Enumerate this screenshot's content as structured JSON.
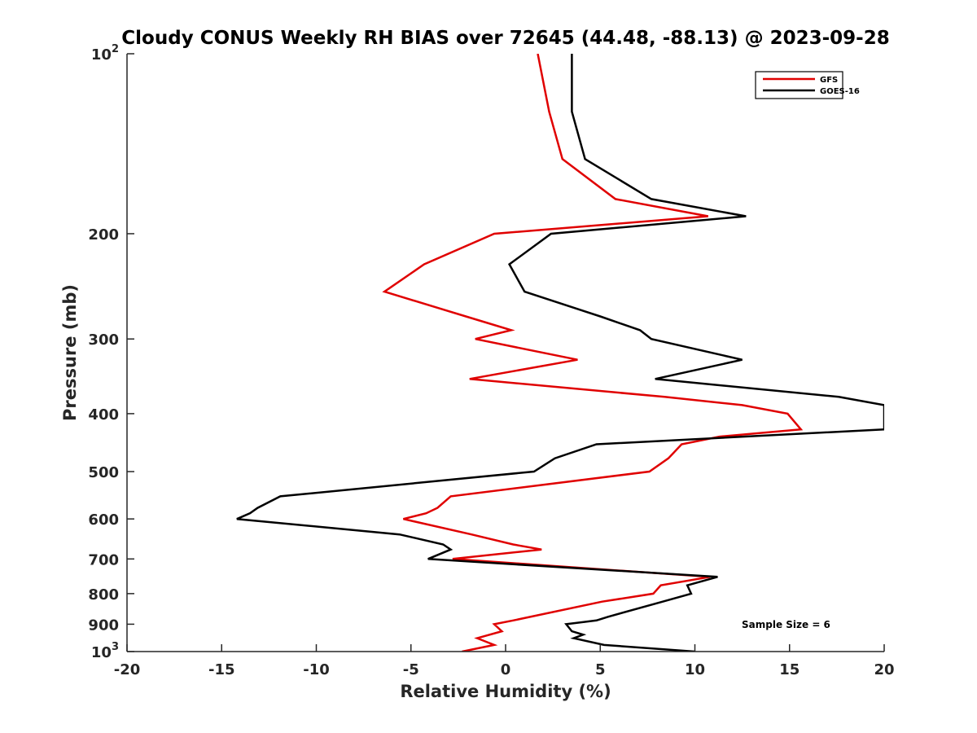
{
  "chart_data": {
    "type": "line",
    "title": "Cloudy CONUS Weekly RH BIAS over 72645 (44.48, -88.13) @ 2023-09-28",
    "xlabel": "Relative Humidity (%)",
    "ylabel": "Pressure (mb)",
    "xlim": [
      -20,
      20
    ],
    "ylim": [
      100,
      1000
    ],
    "y_scale": "log",
    "y_reversed": true,
    "grid": false,
    "legend_position": "top-right",
    "x_ticks": [
      "-20",
      "-15",
      "-10",
      "-5",
      "0",
      "5",
      "10",
      "15",
      "20"
    ],
    "y_ticks": [
      {
        "value": 100,
        "base": "10",
        "exp": "2"
      },
      {
        "value": 200,
        "label": "200"
      },
      {
        "value": 300,
        "label": "300"
      },
      {
        "value": 400,
        "label": "400"
      },
      {
        "value": 500,
        "label": "500"
      },
      {
        "value": 600,
        "label": "600"
      },
      {
        "value": 700,
        "label": "700"
      },
      {
        "value": 800,
        "label": "800"
      },
      {
        "value": 900,
        "label": "900"
      },
      {
        "value": 1000,
        "base": "10",
        "exp": "3"
      }
    ],
    "series": [
      {
        "name": "GFS",
        "color": "#e00000",
        "points": [
          [
            1.7,
            100
          ],
          [
            2.3,
            125
          ],
          [
            3.0,
            150
          ],
          [
            5.8,
            175
          ],
          [
            10.7,
            187
          ],
          [
            -0.6,
            200
          ],
          [
            -4.3,
            225
          ],
          [
            -6.4,
            250
          ],
          [
            -2.1,
            275
          ],
          [
            0.3,
            290
          ],
          [
            -1.6,
            300
          ],
          [
            3.8,
            325
          ],
          [
            -1.9,
            350
          ],
          [
            8.4,
            375
          ],
          [
            12.5,
            387
          ],
          [
            14.9,
            400
          ],
          [
            15.6,
            425
          ],
          [
            11.3,
            437
          ],
          [
            9.3,
            450
          ],
          [
            8.6,
            475
          ],
          [
            7.6,
            500
          ],
          [
            -2.9,
            550
          ],
          [
            -3.6,
            575
          ],
          [
            -4.2,
            587
          ],
          [
            -5.4,
            600
          ],
          [
            -1.8,
            637
          ],
          [
            0.4,
            662
          ],
          [
            1.9,
            675
          ],
          [
            -2.8,
            700
          ],
          [
            10.8,
            750
          ],
          [
            8.2,
            775
          ],
          [
            7.8,
            800
          ],
          [
            5.1,
            825
          ],
          [
            1.3,
            875
          ],
          [
            0.4,
            887
          ],
          [
            -0.6,
            900
          ],
          [
            -0.2,
            925
          ],
          [
            -1.5,
            950
          ],
          [
            -0.6,
            975
          ],
          [
            -2.3,
            1000
          ]
        ]
      },
      {
        "name": "GOES-16",
        "color": "#000000",
        "points": [
          [
            3.5,
            100
          ],
          [
            3.5,
            125
          ],
          [
            4.2,
            150
          ],
          [
            7.7,
            175
          ],
          [
            12.7,
            187
          ],
          [
            2.4,
            200
          ],
          [
            0.2,
            225
          ],
          [
            1.0,
            250
          ],
          [
            5.0,
            275
          ],
          [
            7.1,
            290
          ],
          [
            7.7,
            300
          ],
          [
            12.5,
            325
          ],
          [
            7.9,
            350
          ],
          [
            17.6,
            375
          ],
          [
            20.0,
            387
          ],
          [
            20.0,
            425
          ],
          [
            4.8,
            450
          ],
          [
            2.6,
            475
          ],
          [
            1.5,
            500
          ],
          [
            -11.9,
            550
          ],
          [
            -13.1,
            575
          ],
          [
            -13.5,
            587
          ],
          [
            -14.2,
            600
          ],
          [
            -5.6,
            637
          ],
          [
            -3.3,
            662
          ],
          [
            -2.9,
            675
          ],
          [
            -4.1,
            700
          ],
          [
            11.2,
            750
          ],
          [
            9.6,
            775
          ],
          [
            9.8,
            800
          ],
          [
            8.3,
            825
          ],
          [
            5.4,
            875
          ],
          [
            4.8,
            887
          ],
          [
            3.2,
            900
          ],
          [
            3.5,
            925
          ],
          [
            4.1,
            937
          ],
          [
            3.6,
            950
          ],
          [
            5.2,
            975
          ],
          [
            10.0,
            1000
          ]
        ]
      }
    ],
    "annotation": "Sample Size = 6"
  }
}
